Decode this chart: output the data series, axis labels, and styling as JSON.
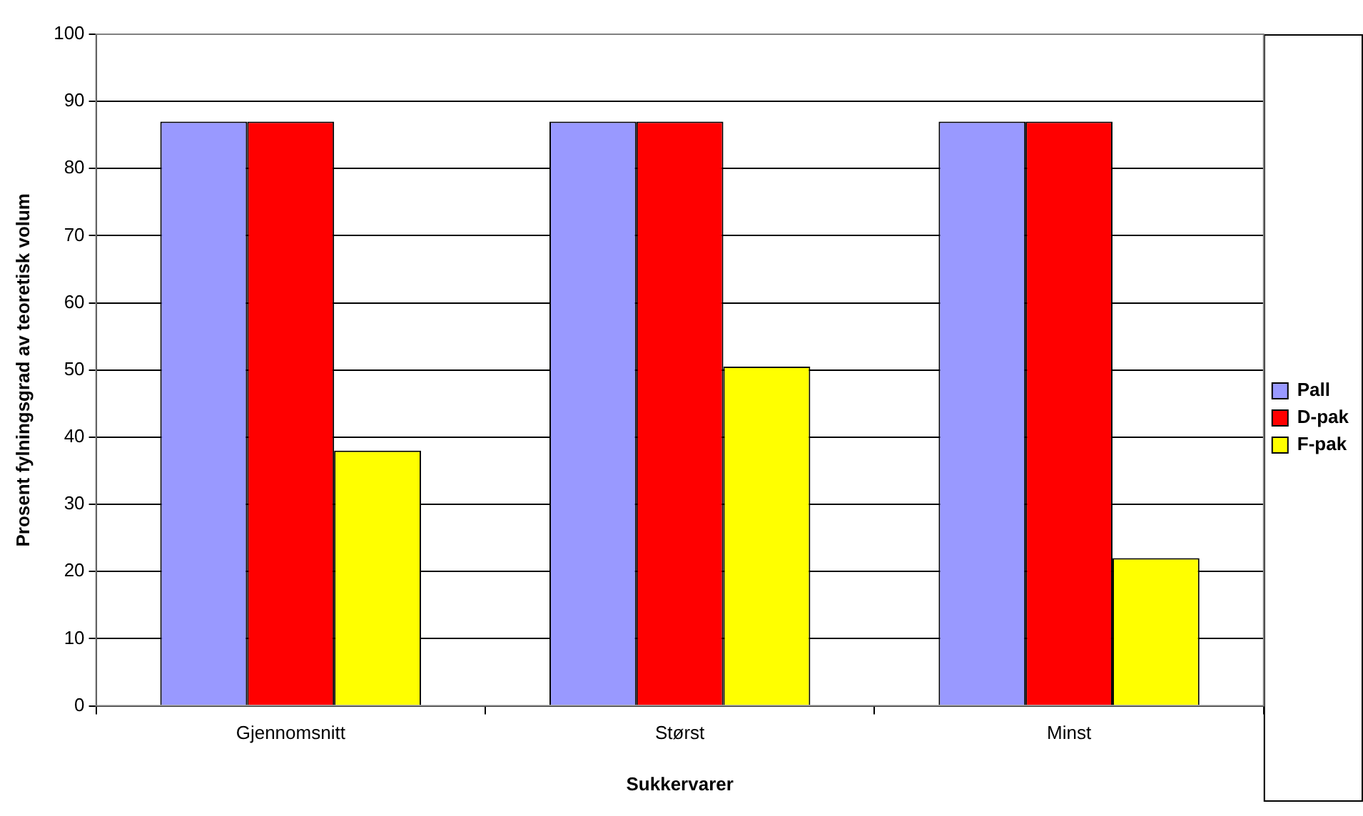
{
  "chart_data": {
    "type": "bar",
    "xlabel": "Sukkervarer",
    "ylabel": "Prosent fylningsgrad av teoretisk volum",
    "categories": [
      "Gjennomsnitt",
      "Størst",
      "Minst"
    ],
    "series": [
      {
        "name": "Pall",
        "color": "#9999ff",
        "values": [
          87,
          87,
          87
        ]
      },
      {
        "name": "D-pak",
        "color": "#ff0000",
        "values": [
          87,
          87,
          87
        ]
      },
      {
        "name": "F-pak",
        "color": "#ffff00",
        "values": [
          38,
          50.5,
          22
        ]
      }
    ],
    "ylim": [
      0,
      100
    ],
    "yticks": [
      0,
      10,
      20,
      30,
      40,
      50,
      60,
      70,
      80,
      90,
      100
    ],
    "grid": "y",
    "legend": "right"
  }
}
